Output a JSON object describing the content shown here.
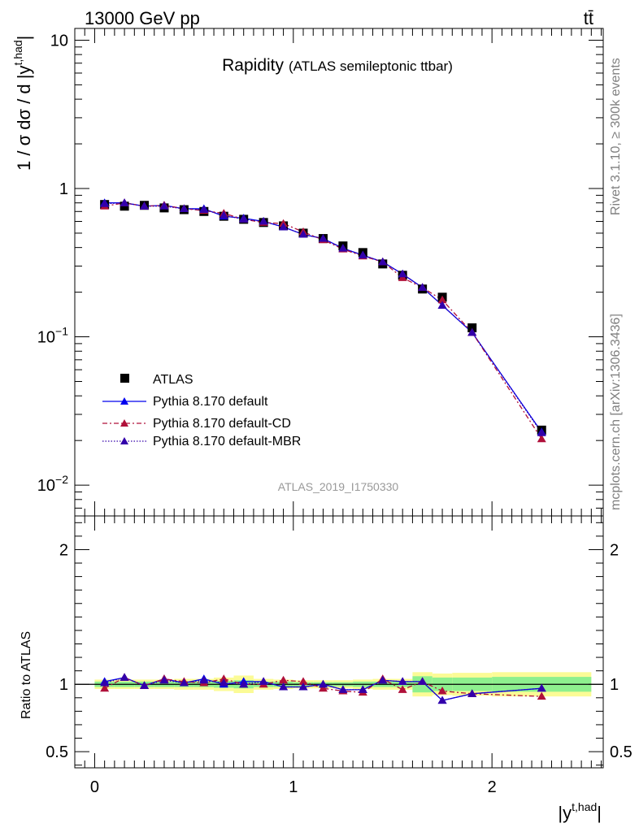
{
  "header": {
    "energy": "13000 GeV pp",
    "process": "tt̄"
  },
  "side_labels": {
    "rivet": "Rivet 3.1.10, ≥ 300k events",
    "mcplots": "mcplots.cern.ch [arXiv:1306.3436]"
  },
  "main_title": {
    "label": "Rapidity",
    "sub": "(ATLAS semileptonic ttbar)"
  },
  "analysis_id": "ATLAS_2019_I1750330",
  "colors": {
    "data": "#000000",
    "default": "#0000ee",
    "cd": "#b0103a",
    "mbr": "#3300aa",
    "band_inner": "#8ef08e",
    "band_outer": "#fbfb96"
  },
  "chart_data": [
    {
      "type": "line",
      "scale": "log",
      "title": "Rapidity (ATLAS semileptonic ttbar)",
      "ylabel_main": "1 / σ dσ / d |y",
      "ylabel_sup": "t,had",
      "ylabel_end": "|",
      "xlim": [
        -0.1,
        2.56
      ],
      "ylim": [
        0.0062,
        12
      ],
      "y_ticks": [
        {
          "value": 0.01,
          "base": "10",
          "exp": "−2"
        },
        {
          "value": 0.1,
          "base": "10",
          "exp": "−1"
        },
        {
          "value": 1,
          "base": "1",
          "exp": ""
        },
        {
          "value": 10,
          "base": "10",
          "exp": ""
        }
      ],
      "bins": [
        {
          "lo": 0.0,
          "hi": 0.1
        },
        {
          "lo": 0.1,
          "hi": 0.2
        },
        {
          "lo": 0.2,
          "hi": 0.3
        },
        {
          "lo": 0.3,
          "hi": 0.4
        },
        {
          "lo": 0.4,
          "hi": 0.5
        },
        {
          "lo": 0.5,
          "hi": 0.6
        },
        {
          "lo": 0.6,
          "hi": 0.7
        },
        {
          "lo": 0.7,
          "hi": 0.8
        },
        {
          "lo": 0.8,
          "hi": 0.9
        },
        {
          "lo": 0.9,
          "hi": 1.0
        },
        {
          "lo": 1.0,
          "hi": 1.1
        },
        {
          "lo": 1.1,
          "hi": 1.2
        },
        {
          "lo": 1.2,
          "hi": 1.3
        },
        {
          "lo": 1.3,
          "hi": 1.4
        },
        {
          "lo": 1.4,
          "hi": 1.5
        },
        {
          "lo": 1.5,
          "hi": 1.6
        },
        {
          "lo": 1.6,
          "hi": 1.7
        },
        {
          "lo": 1.7,
          "hi": 1.8
        },
        {
          "lo": 1.8,
          "hi": 2.0
        },
        {
          "lo": 2.0,
          "hi": 2.5
        }
      ],
      "x": [
        0.05,
        0.15,
        0.25,
        0.35,
        0.45,
        0.55,
        0.65,
        0.75,
        0.85,
        0.95,
        1.05,
        1.15,
        1.25,
        1.35,
        1.45,
        1.55,
        1.65,
        1.75,
        1.9,
        2.25
      ],
      "series": [
        {
          "name": "ATLAS",
          "key": "data",
          "marker": "square",
          "values": [
            0.78,
            0.76,
            0.77,
            0.74,
            0.72,
            0.7,
            0.65,
            0.62,
            0.59,
            0.56,
            0.5,
            0.46,
            0.41,
            0.37,
            0.31,
            0.26,
            0.21,
            0.185,
            0.115,
            0.0235
          ]
        },
        {
          "name": "Pythia 8.170 default",
          "key": "default",
          "marker": "triangle",
          "dash": "",
          "values": [
            0.8,
            0.8,
            0.76,
            0.77,
            0.73,
            0.73,
            0.65,
            0.63,
            0.6,
            0.55,
            0.49,
            0.46,
            0.395,
            0.355,
            0.32,
            0.265,
            0.215,
            0.163,
            0.107,
            0.0228
          ]
        },
        {
          "name": "Pythia 8.170 default-CD",
          "key": "cd",
          "marker": "triangle",
          "dash": "6,3,2,3",
          "values": [
            0.76,
            0.8,
            0.76,
            0.77,
            0.73,
            0.71,
            0.68,
            0.62,
            0.59,
            0.58,
            0.51,
            0.45,
            0.39,
            0.35,
            0.32,
            0.25,
            0.215,
            0.177,
            0.107,
            0.0205
          ]
        },
        {
          "name": "Pythia 8.170 default-MBR",
          "key": "mbr",
          "marker": "triangle",
          "dash": "1.5,2",
          "values": [
            0.79,
            0.8,
            0.76,
            0.76,
            0.73,
            0.72,
            0.66,
            0.62,
            0.6,
            0.55,
            0.49,
            0.46,
            0.395,
            0.355,
            0.32,
            0.265,
            0.215,
            0.163,
            0.107,
            0.0225
          ]
        }
      ]
    },
    {
      "type": "line",
      "title": "",
      "xlabel_main": "|y",
      "xlabel_sup": "t,had",
      "xlabel_end": "|",
      "ylabel": "Ratio to ATLAS",
      "xlim": [
        -0.1,
        2.56
      ],
      "ylim": [
        0.38,
        2.25
      ],
      "x_ticks": [
        0,
        1,
        2
      ],
      "y_ticks": [
        0.5,
        1,
        2
      ],
      "band_inner": [
        0.02,
        0.02,
        0.02,
        0.02,
        0.02,
        0.02,
        0.025,
        0.03,
        0.02,
        0.02,
        0.015,
        0.015,
        0.015,
        0.02,
        0.02,
        0.02,
        0.06,
        0.05,
        0.05,
        0.055
      ],
      "band_outer": [
        0.035,
        0.035,
        0.035,
        0.035,
        0.04,
        0.04,
        0.05,
        0.065,
        0.04,
        0.035,
        0.03,
        0.03,
        0.03,
        0.035,
        0.04,
        0.04,
        0.09,
        0.08,
        0.085,
        0.09
      ],
      "series": [
        {
          "name": "Pythia 8.170 default",
          "key": "default",
          "values": [
            1.02,
            1.05,
            0.99,
            1.04,
            1.01,
            1.04,
            1.0,
            1.02,
            1.02,
            0.98,
            0.98,
            1.0,
            0.96,
            0.96,
            1.03,
            1.02,
            1.02,
            0.88,
            0.93,
            0.97
          ]
        },
        {
          "name": "Pythia 8.170 default-CD",
          "key": "cd",
          "values": [
            0.97,
            1.05,
            0.99,
            1.04,
            1.02,
            1.01,
            1.04,
            1.0,
            1.0,
            1.03,
            1.02,
            0.97,
            0.95,
            0.94,
            1.04,
            0.96,
            1.02,
            0.95,
            0.93,
            0.91
          ]
        },
        {
          "name": "Pythia 8.170 default-MBR",
          "key": "mbr",
          "values": [
            1.01,
            1.05,
            0.99,
            1.03,
            1.01,
            1.03,
            1.01,
            1.0,
            1.02,
            0.98,
            0.98,
            1.0,
            0.96,
            0.96,
            1.03,
            1.02,
            1.02,
            0.88,
            0.93,
            0.97
          ]
        }
      ]
    }
  ]
}
